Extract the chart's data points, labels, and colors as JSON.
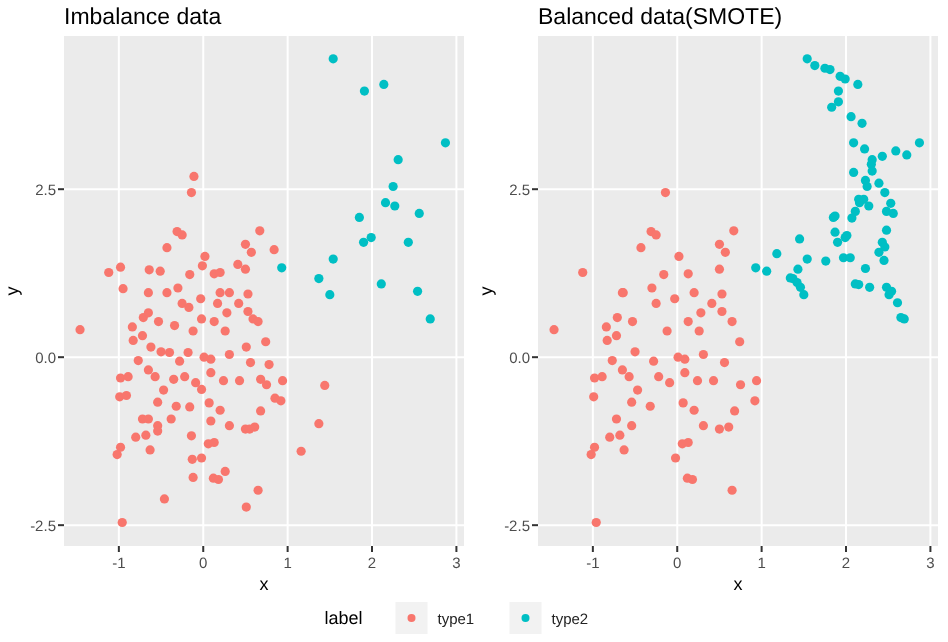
{
  "chart_data": [
    {
      "type": "scatter",
      "title": "Imbalance data",
      "xlabel": "x",
      "ylabel": "y",
      "xlim": [
        -1.65,
        3.09
      ],
      "ylim": [
        -2.81,
        4.78
      ],
      "xticks": [
        -1,
        0,
        1,
        2,
        3
      ],
      "yticks": [
        {
          "value": -2.5,
          "label": "-2.5"
        },
        {
          "value": 0,
          "label": "0.0"
        },
        {
          "value": 2.5,
          "label": "2.5"
        }
      ],
      "grid": true,
      "marker": "circle",
      "legend": "bottom",
      "legend_title": "label",
      "series": [
        {
          "name": "type1",
          "color": "#f8766d",
          "x": [
            -0.11,
            -0.14,
            -0.31,
            -0.25,
            0.67,
            0.84,
            0.5,
            0.57,
            -0.43,
            0.02,
            -1.12,
            -0.98,
            -0.64,
            -0.51,
            -0.16,
            -0.01,
            0.13,
            0.2,
            0.41,
            0.5,
            -0.95,
            -0.65,
            -0.43,
            -0.3,
            -0.03,
            -0.25,
            -0.17,
            0.2,
            0.31,
            0.53,
            0.17,
            0.42,
            0.28,
            -1.46,
            -0.84,
            -0.71,
            -0.65,
            -0.53,
            -0.34,
            -0.12,
            -0.02,
            0.13,
            0.26,
            0.53,
            0.59,
            0.65,
            0.74,
            -0.83,
            -0.72,
            -0.62,
            -0.5,
            -0.77,
            -0.65,
            -0.4,
            -0.28,
            -0.18,
            0.01,
            0.09,
            0.31,
            0.51,
            0.56,
            0.78,
            -0.98,
            -0.89,
            -0.99,
            -0.91,
            -0.57,
            -0.47,
            -0.35,
            -0.22,
            -0.09,
            -0.02,
            0.09,
            0.24,
            0.43,
            0.68,
            0.75,
            0.94,
            0.92,
            0.85,
            -0.54,
            -0.32,
            -0.16,
            0.07,
            0.2,
            0.68,
            -0.72,
            -0.65,
            -0.54,
            -0.38,
            0.09,
            0.31,
            0.5,
            0.61,
            0.55,
            -0.8,
            -0.68,
            -0.54,
            -0.14,
            0.06,
            0.13,
            -0.63,
            -0.98,
            -1.02,
            -0.13,
            -0.02,
            0.12,
            0.18,
            0.26,
            -0.12,
            0.65,
            1.16,
            1.44,
            1.37,
            -0.46,
            0.51,
            -0.96
          ],
          "values": [
            2.69,
            2.45,
            1.87,
            1.82,
            1.88,
            1.6,
            1.68,
            1.56,
            1.63,
            1.5,
            1.26,
            1.34,
            1.3,
            1.28,
            1.23,
            1.36,
            1.24,
            1.26,
            1.38,
            1.31,
            1.02,
            0.96,
            0.96,
            1.03,
            0.87,
            0.8,
            0.74,
            0.96,
            0.96,
            0.94,
            0.8,
            0.8,
            0.66,
            0.41,
            0.45,
            0.59,
            0.66,
            0.53,
            0.47,
            0.39,
            0.57,
            0.53,
            0.39,
            0.68,
            0.57,
            0.53,
            0.23,
            0.25,
            0.32,
            0.15,
            0.08,
            -0.05,
            -0.19,
            0.07,
            -0.06,
            0.07,
            0,
            -0.03,
            0.04,
            0.15,
            -0.08,
            -0.11,
            -0.31,
            -0.29,
            -0.59,
            -0.57,
            -0.29,
            -0.49,
            -0.33,
            -0.29,
            -0.38,
            -0.48,
            -0.23,
            -0.35,
            -0.35,
            -0.33,
            -0.41,
            -0.35,
            -0.65,
            -0.61,
            -0.67,
            -0.73,
            -0.74,
            -0.68,
            -0.79,
            -0.8,
            -0.92,
            -0.92,
            -1.02,
            -0.92,
            -0.95,
            -1.02,
            -1.07,
            -1.04,
            -1.07,
            -1.19,
            -1.16,
            -1.1,
            -1.17,
            -1.29,
            -1.27,
            -1.38,
            -1.34,
            -1.45,
            -1.52,
            -1.5,
            -1.8,
            -1.82,
            -1.7,
            -1.79,
            -1.98,
            -1.4,
            -0.42,
            -0.99,
            -2.11,
            -2.23,
            -2.46
          ]
        },
        {
          "name": "type2",
          "color": "#00bfc4",
          "x": [
            1.54,
            1.91,
            2.14,
            2.87,
            2.31,
            2.25,
            2.16,
            2.27,
            1.85,
            2.56,
            1.99,
            1.9,
            2.43,
            1.54,
            0.93,
            1.37,
            2.11,
            1.5,
            2.54,
            2.69
          ],
          "values": [
            4.44,
            3.96,
            4.06,
            3.19,
            2.94,
            2.54,
            2.3,
            2.25,
            2.08,
            2.14,
            1.78,
            1.71,
            1.71,
            1.46,
            1.33,
            1.17,
            1.09,
            0.93,
            0.98,
            0.57
          ]
        }
      ]
    },
    {
      "type": "scatter",
      "title": "Balanced data(SMOTE)",
      "xlabel": "x",
      "ylabel": "y",
      "xlim": [
        -1.65,
        3.09
      ],
      "ylim": [
        -2.81,
        4.78
      ],
      "xticks": [
        -1,
        0,
        1,
        2,
        3
      ],
      "yticks": [
        {
          "value": -2.5,
          "label": "-2.5"
        },
        {
          "value": 0,
          "label": "0.0"
        },
        {
          "value": 2.5,
          "label": "2.5"
        }
      ],
      "grid": true,
      "marker": "circle",
      "series": [
        {
          "color": "#f8766d",
          "x": [
            -0.14,
            -0.31,
            -0.25,
            0.67,
            0.5,
            0.57,
            -0.43,
            0.02,
            -1.12,
            -0.64,
            -0.16,
            0.13,
            0.41,
            0.5,
            -0.65,
            -0.3,
            -0.03,
            -0.25,
            0.2,
            0.53,
            0.28,
            -1.46,
            -0.84,
            -0.71,
            -0.53,
            -0.12,
            0.13,
            0.26,
            0.53,
            0.65,
            0.74,
            -0.83,
            -0.72,
            -0.5,
            -0.77,
            -0.65,
            -0.28,
            0.01,
            0.09,
            0.31,
            0.56,
            -0.98,
            -0.89,
            -0.99,
            -0.57,
            -0.47,
            -0.22,
            -0.09,
            0.09,
            0.24,
            0.43,
            0.75,
            0.94,
            0.92,
            -0.54,
            -0.32,
            0.07,
            0.2,
            0.68,
            -0.72,
            -0.54,
            0.31,
            0.5,
            0.61,
            -0.8,
            -0.68,
            0.06,
            0.13,
            -0.63,
            -0.98,
            -1.02,
            -0.02,
            0.12,
            0.18,
            0.65,
            -0.96
          ],
          "values": [
            2.45,
            1.87,
            1.82,
            1.88,
            1.68,
            1.56,
            1.63,
            1.5,
            1.26,
            0.96,
            1.23,
            1.24,
            0.8,
            1.31,
            0.96,
            1.03,
            0.87,
            0.8,
            0.96,
            0.94,
            0.66,
            0.41,
            0.45,
            0.59,
            0.53,
            0.39,
            0.53,
            0.39,
            0.68,
            0.53,
            0.23,
            0.25,
            0.32,
            0.08,
            -0.05,
            -0.19,
            -0.06,
            0,
            -0.03,
            0.04,
            -0.08,
            -0.31,
            -0.29,
            -0.59,
            -0.29,
            -0.49,
            -0.29,
            -0.38,
            -0.23,
            -0.35,
            -0.35,
            -0.41,
            -0.35,
            -0.65,
            -0.67,
            -0.73,
            -0.68,
            -0.79,
            -0.8,
            -0.92,
            -1.02,
            -1.02,
            -1.07,
            -1.04,
            -1.19,
            -1.16,
            -1.29,
            -1.27,
            -1.38,
            -1.34,
            -1.45,
            -1.5,
            -1.8,
            -1.82,
            -1.98,
            -2.46
          ]
        },
        {
          "color": "#00bfc4",
          "x": [
            1.54,
            1.91,
            2.14,
            2.87,
            2.31,
            2.25,
            2.16,
            2.27,
            1.85,
            2.56,
            1.99,
            1.9,
            2.43,
            1.54,
            0.93,
            1.37,
            2.11,
            1.5,
            2.54,
            2.69,
            1.63,
            1.75,
            1.81,
            1.93,
            1.99,
            1.91,
            1.83,
            2.06,
            2.19,
            2.09,
            2.22,
            2.3,
            2.31,
            2.09,
            2.43,
            2.59,
            2.72,
            2.39,
            2.23,
            2.46,
            2.53,
            2.15,
            2.21,
            2.11,
            2.07,
            2.48,
            1.87,
            2.48,
            1.87,
            2.01,
            2.39,
            2.45,
            2.46,
            1.97,
            2.05,
            1.18,
            1.45,
            1.06,
            1.76,
            1.43,
            1.42,
            1.46,
            1.34,
            2.23,
            2.28,
            2.15,
            2.48,
            2.51,
            2.61,
            2.65
          ],
          "values": [
            4.44,
            3.96,
            4.06,
            3.19,
            2.94,
            2.54,
            2.3,
            2.25,
            2.08,
            2.14,
            1.78,
            1.71,
            1.71,
            1.46,
            1.33,
            1.17,
            1.09,
            0.93,
            0.98,
            0.57,
            4.34,
            4.3,
            4.28,
            4.18,
            4.14,
            3.8,
            3.72,
            3.58,
            3.48,
            3.19,
            3.1,
            2.87,
            2.77,
            2.75,
            2.99,
            3.07,
            3.01,
            2.59,
            2.63,
            2.45,
            2.29,
            2.35,
            2.35,
            2.17,
            2.07,
            2.17,
            2.1,
            1.89,
            1.86,
            1.81,
            1.56,
            1.44,
            1.64,
            1.48,
            1.48,
            1.54,
            1.76,
            1.28,
            1.43,
            1.31,
            1.11,
            1.04,
            1.18,
            1.32,
            1.04,
            1.08,
            1.04,
            0.93,
            0.81,
            0.59
          ]
        }
      ]
    }
  ]
}
